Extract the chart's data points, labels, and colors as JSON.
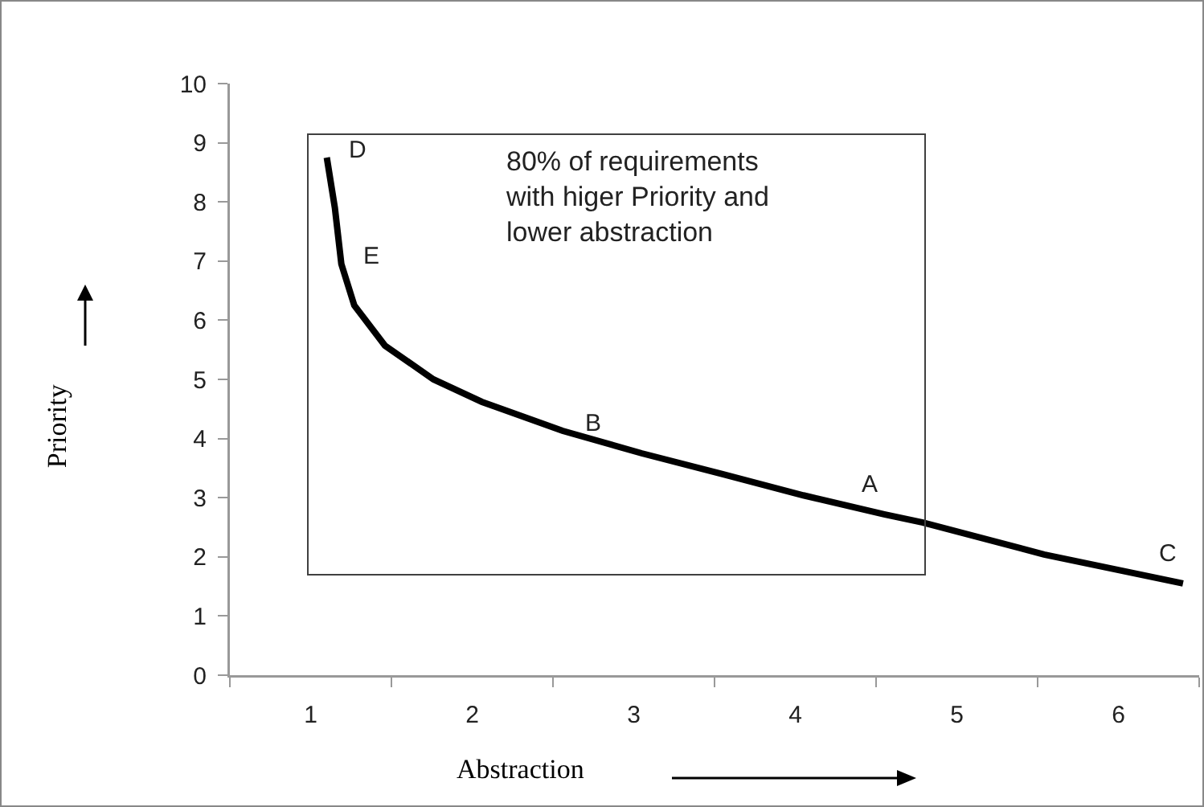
{
  "chart_data": {
    "type": "line",
    "xlabel": "Abstraction",
    "ylabel": "Priority",
    "xlim": [
      0.5,
      6.5
    ],
    "xticks": [
      1,
      2,
      3,
      4,
      5,
      6
    ],
    "ylim": [
      0,
      10
    ],
    "yticks": [
      0,
      1,
      2,
      3,
      4,
      5,
      6,
      7,
      8,
      9,
      10
    ],
    "grid": false,
    "marker": "none",
    "line_style": "solid",
    "series": [
      {
        "color": "#000000",
        "x": [
          1.1,
          1.15,
          1.19,
          1.27,
          1.46,
          1.76,
          2.06,
          2.56,
          3.05,
          3.55,
          4.05,
          4.55,
          4.79,
          5.54,
          6.4
        ],
        "values": [
          8.75,
          7.9,
          6.95,
          6.25,
          5.57,
          5.0,
          4.62,
          4.13,
          3.75,
          3.4,
          3.04,
          2.72,
          2.58,
          2.04,
          1.55
        ]
      }
    ],
    "annotations": [
      {
        "text": "D",
        "x": 1.1,
        "y": 8.75
      },
      {
        "text": "E",
        "x": 1.19,
        "y": 6.95
      },
      {
        "text": "B",
        "x": 2.56,
        "y": 4.13
      },
      {
        "text": "A",
        "x": 4.55,
        "y": 2.72
      },
      {
        "text": "C",
        "x": 6.4,
        "y": 1.55
      },
      "80% of requirements\nwith higer Priority and\nlower abstraction"
    ]
  }
}
